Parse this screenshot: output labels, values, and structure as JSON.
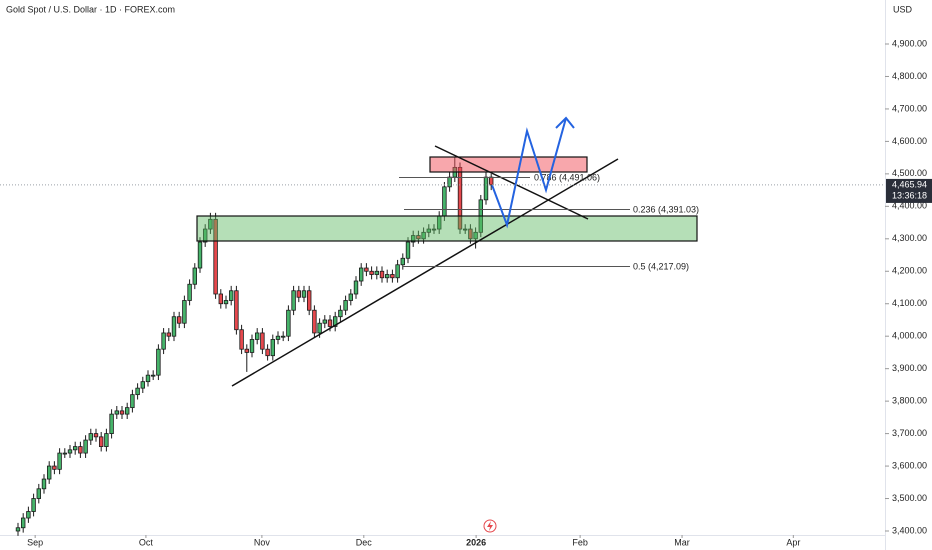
{
  "chart_data": {
    "type": "candlestick",
    "title": "Gold Spot / U.S. Dollar · 1D · FOREX.com",
    "currency": "USD",
    "up_color": "#46b36a",
    "down_color": "#e5484d",
    "xlim": [
      -3.46,
      166.73
    ],
    "xticks": [
      {
        "value": 3.3,
        "label": "Sep"
      },
      {
        "value": 24.6,
        "label": "Oct"
      },
      {
        "value": 46.9,
        "label": "Nov"
      },
      {
        "value": 66.5,
        "label": "Dec"
      },
      {
        "value": 88.1,
        "label": "2026"
      },
      {
        "value": 108.1,
        "label": "Feb"
      },
      {
        "value": 127.7,
        "label": "Mar"
      },
      {
        "value": 149.1,
        "label": "Apr"
      }
    ],
    "ylim": [
      3400,
      4982
    ],
    "yticks": [
      {
        "value": 3400,
        "label": "3,400.00"
      },
      {
        "value": 3500,
        "label": "3,500.00"
      },
      {
        "value": 3600,
        "label": "3,600.00"
      },
      {
        "value": 3700,
        "label": "3,700.00"
      },
      {
        "value": 3800,
        "label": "3,800.00"
      },
      {
        "value": 3900,
        "label": "3,900.00"
      },
      {
        "value": 4000,
        "label": "4,000.00"
      },
      {
        "value": 4100,
        "label": "4,100.00"
      },
      {
        "value": 4200,
        "label": "4,200.00"
      },
      {
        "value": 4300,
        "label": "4,300.00"
      },
      {
        "value": 4400,
        "label": "4,400.00"
      },
      {
        "value": 4500,
        "label": "4,500.00"
      },
      {
        "value": 4600,
        "label": "4,600.00"
      },
      {
        "value": 4700,
        "label": "4,700.00"
      },
      {
        "value": 4800,
        "label": "4,800.00"
      },
      {
        "value": 4900,
        "label": "4,900.00"
      }
    ],
    "open": [
      3400,
      3410,
      3440,
      3460,
      3500,
      3530,
      3560,
      3600,
      3590,
      3640,
      3640,
      3650,
      3660,
      3640,
      3680,
      3700,
      3690,
      3660,
      3700,
      3760,
      3770,
      3760,
      3780,
      3820,
      3840,
      3860,
      3880,
      3880,
      3960,
      4010,
      4000,
      4060,
      4040,
      4110,
      4160,
      4210,
      4290,
      4330,
      4360,
      4130,
      4100,
      4110,
      4140,
      4020,
      3960,
      3950,
      3990,
      4010,
      3960,
      3940,
      3990,
      4000,
      4000,
      4080,
      4140,
      4120,
      4140,
      4080,
      4010,
      4040,
      4050,
      4030,
      4060,
      4080,
      4110,
      4130,
      4170,
      4210,
      4200,
      4190,
      4200,
      4180,
      4190,
      4180,
      4220,
      4240,
      4290,
      4310,
      4300,
      4320,
      4330,
      4330,
      4370,
      4460,
      4490,
      4520,
      4330,
      4330,
      4300,
      4320,
      4420,
      4490
    ],
    "high": [
      3425,
      3455,
      3475,
      3515,
      3545,
      3575,
      3615,
      3615,
      3655,
      3655,
      3665,
      3675,
      3675,
      3695,
      3715,
      3715,
      3705,
      3715,
      3775,
      3785,
      3785,
      3795,
      3835,
      3855,
      3875,
      3895,
      3895,
      3975,
      4025,
      4025,
      4075,
      4075,
      4125,
      4175,
      4225,
      4305,
      4345,
      4380,
      4380,
      4145,
      4125,
      4155,
      4155,
      4035,
      3975,
      4005,
      4025,
      4025,
      3975,
      4005,
      4015,
      4015,
      4095,
      4155,
      4155,
      4155,
      4155,
      4095,
      4055,
      4065,
      4065,
      4075,
      4095,
      4125,
      4145,
      4185,
      4225,
      4225,
      4215,
      4215,
      4215,
      4205,
      4205,
      4235,
      4255,
      4305,
      4325,
      4325,
      4335,
      4345,
      4345,
      4385,
      4475,
      4505,
      4550,
      4535,
      4345,
      4345,
      4335,
      4435,
      4505,
      4500
    ],
    "low": [
      3385,
      3395,
      3425,
      3445,
      3485,
      3515,
      3545,
      3575,
      3575,
      3625,
      3625,
      3635,
      3625,
      3625,
      3665,
      3675,
      3645,
      3645,
      3685,
      3745,
      3745,
      3745,
      3765,
      3805,
      3825,
      3845,
      3865,
      3865,
      3945,
      3985,
      3985,
      4025,
      4025,
      4095,
      4145,
      4195,
      4275,
      4315,
      4115,
      4085,
      4085,
      4095,
      4005,
      3945,
      3890,
      3935,
      3975,
      3945,
      3925,
      3925,
      3975,
      3985,
      3985,
      4065,
      4105,
      4105,
      4065,
      3995,
      3995,
      4025,
      4015,
      4015,
      4045,
      4065,
      4095,
      4115,
      4155,
      4185,
      4175,
      4175,
      4165,
      4165,
      4165,
      4165,
      4205,
      4225,
      4275,
      4285,
      4285,
      4305,
      4315,
      4315,
      4355,
      4445,
      4475,
      4315,
      4315,
      4285,
      4270,
      4305,
      4405,
      4450
    ],
    "close": [
      3410,
      3440,
      3460,
      3500,
      3530,
      3560,
      3600,
      3590,
      3640,
      3640,
      3650,
      3660,
      3640,
      3680,
      3700,
      3690,
      3660,
      3700,
      3760,
      3770,
      3760,
      3780,
      3820,
      3840,
      3860,
      3880,
      3880,
      3960,
      4010,
      4000,
      4060,
      4040,
      4110,
      4160,
      4210,
      4290,
      4330,
      4360,
      4130,
      4100,
      4110,
      4140,
      4020,
      3960,
      3950,
      3990,
      4010,
      3960,
      3940,
      3990,
      4000,
      4000,
      4080,
      4140,
      4120,
      4140,
      4080,
      4010,
      4040,
      4050,
      4030,
      4060,
      4080,
      4110,
      4130,
      4170,
      4210,
      4200,
      4190,
      4200,
      4180,
      4190,
      4180,
      4220,
      4240,
      4290,
      4310,
      4300,
      4320,
      4330,
      4330,
      4370,
      4460,
      4490,
      4520,
      4330,
      4330,
      4300,
      4320,
      4420,
      4490,
      4465.94
    ],
    "last_price_label": "4,465.94",
    "countdown": "13:36:18",
    "annotations": [
      "0.786 (4,491.06)",
      "0.236 (4,391.03)",
      "0.5 (4,217.09)"
    ]
  }
}
